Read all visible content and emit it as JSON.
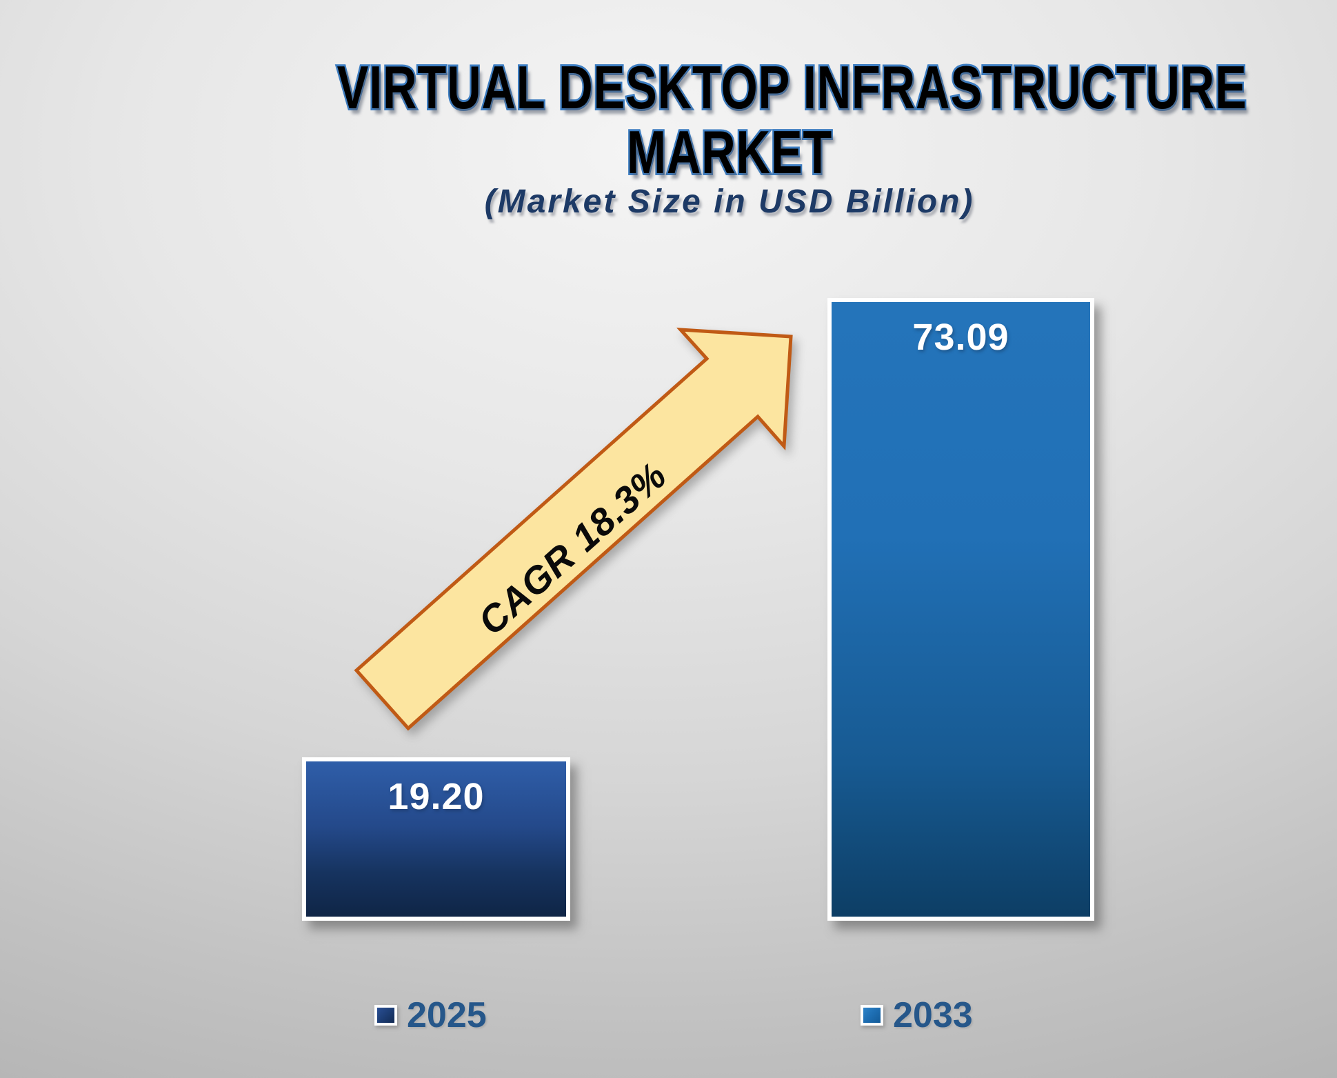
{
  "title": {
    "line1": "VIRTUAL DESKTOP INFRASTRUCTURE",
    "line2": "MARKET",
    "subtitle": "(Market Size in USD Billion)"
  },
  "chart_data": {
    "type": "bar",
    "title": "VIRTUAL DESKTOP INFRASTRUCTURE MARKET",
    "subtitle": "(Market Size in USD Billion)",
    "unit": "USD Billion",
    "categories": [
      "2025",
      "2033"
    ],
    "values": [
      19.2,
      73.09
    ],
    "bar_labels": [
      "19.20",
      "73.09"
    ],
    "annotation": "CAGR 18.3%",
    "cagr_percent": 18.3,
    "legend_position": "bottom",
    "grid": false,
    "ylim": [
      0,
      75
    ]
  },
  "legend": {
    "items": [
      {
        "label": "2025",
        "swatch_color": "#1e3f78"
      },
      {
        "label": "2033",
        "swatch_color": "#1e6fb4"
      }
    ]
  },
  "arrow": {
    "label": "CAGR 18.3%",
    "fill": "#fce5a0",
    "stroke": "#c05a15"
  },
  "colors": {
    "title_fill": "#000000",
    "title_outline": "#3d7dc1",
    "subtitle_text": "#1d3a66",
    "bar_2025_top": "#2f5ea9",
    "bar_2025_bottom": "#0f2546",
    "bar_2033_top": "#2474ba",
    "bar_2033_bottom": "#0d3e65",
    "bar_border": "#ffffff",
    "value_label": "#ffffff",
    "legend_text": "#26578a",
    "background": "#d9d9d9"
  }
}
